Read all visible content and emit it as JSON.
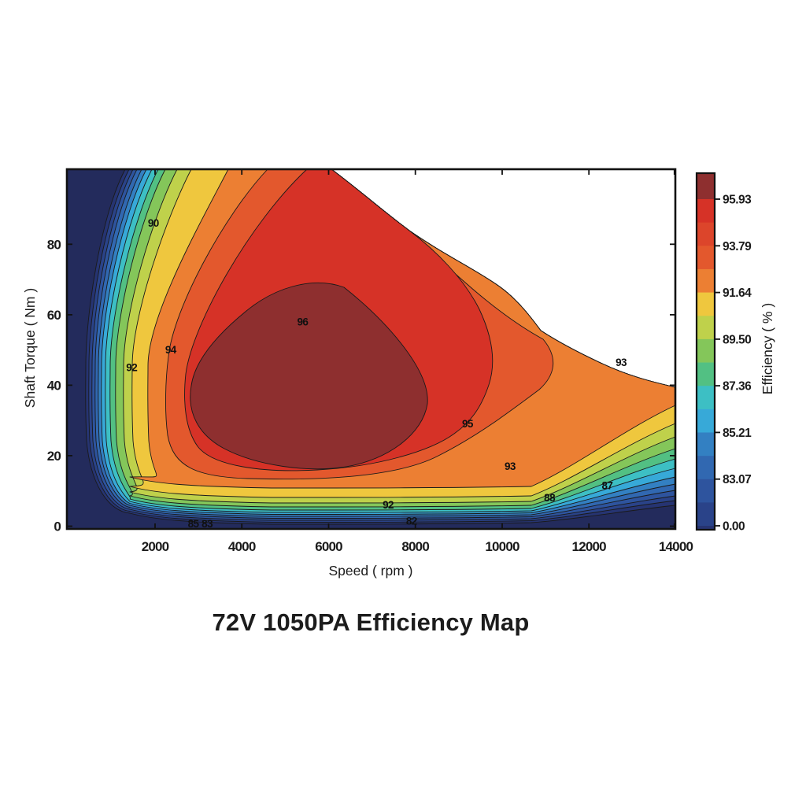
{
  "figure": {
    "title": "72V 1050PA Efficiency Map",
    "x_axis_label": "Speed ( rpm )",
    "y_axis_label": "Shaft Torque ( Nm )",
    "colorbar_label": "Efficiency ( % )"
  },
  "colors": {
    "background": "#ffffff",
    "frame": "#111111",
    "contour_line": "#1a1a1a",
    "text": "#1b1b1b"
  },
  "chart_data": {
    "type": "heatmap",
    "subtype": "filled_contour_motor_efficiency_map",
    "title": "72V 1050PA Efficiency Map",
    "xlabel": "Speed ( rpm )",
    "ylabel": "Shaft Torque ( Nm )",
    "xlim": [
      0,
      14000
    ],
    "ylim": [
      0,
      102
    ],
    "x_ticks": [
      2000,
      4000,
      6000,
      8000,
      10000,
      12000,
      14000
    ],
    "y_ticks": [
      0,
      20,
      40,
      60,
      80
    ],
    "grid": false,
    "legend_position": "colorbar-right",
    "peak_efficiency_contour": 96,
    "contour_levels": [
      82,
      83,
      84,
      85,
      86,
      87,
      88,
      89,
      90,
      91,
      92,
      93,
      94,
      95,
      96
    ],
    "contour_band_colors_low_to_high": [
      "#232B5C",
      "#263472",
      "#2A4389",
      "#2E549E",
      "#3168B1",
      "#3380C2",
      "#37A9D8",
      "#3DBFC4",
      "#52C083",
      "#84C65A",
      "#BFD14B",
      "#EFC73E",
      "#EC7F33",
      "#E3582D",
      "#D63227",
      "#8E2F2F"
    ],
    "contour_line_labels": [
      {
        "value": 90,
        "speed_rpm": 1960,
        "torque_nm": 86
      },
      {
        "value": 92,
        "speed_rpm": 1460,
        "torque_nm": 45
      },
      {
        "value": 94,
        "speed_rpm": 2360,
        "torque_nm": 50
      },
      {
        "value": 96,
        "speed_rpm": 5400,
        "torque_nm": 58
      },
      {
        "value": 95,
        "speed_rpm": 9200,
        "torque_nm": 29
      },
      {
        "value": 93,
        "speed_rpm": 12740,
        "torque_nm": 46.5
      },
      {
        "value": 93,
        "speed_rpm": 10180,
        "torque_nm": 17
      },
      {
        "value": 92,
        "speed_rpm": 7370,
        "torque_nm": 6
      },
      {
        "value": 88,
        "speed_rpm": 11090,
        "torque_nm": 8
      },
      {
        "value": 87,
        "speed_rpm": 12420,
        "torque_nm": 11.5
      },
      {
        "value": 82,
        "speed_rpm": 7910,
        "torque_nm": 1.5
      },
      {
        "value": 85,
        "speed_rpm": 2880,
        "torque_nm": 0.5
      },
      {
        "value": 83,
        "speed_rpm": 3200,
        "torque_nm": 0.5
      }
    ],
    "colorbar": {
      "label": "Efficiency ( % )",
      "tick_labels": [
        "95.93",
        "93.79",
        "91.64",
        "89.50",
        "87.36",
        "85.21",
        "83.07",
        "0.00"
      ],
      "segment_colors_top_to_bottom": [
        "#8E2F2F",
        "#D63227",
        "#DC452B",
        "#E3582D",
        "#EC7F33",
        "#EFC73E",
        "#BFD14B",
        "#84C65A",
        "#52C083",
        "#3DBFC4",
        "#37A9D8",
        "#3380C2",
        "#3168B1",
        "#2E549E",
        "#2A4389",
        "#263472",
        "#232B5C"
      ]
    }
  }
}
